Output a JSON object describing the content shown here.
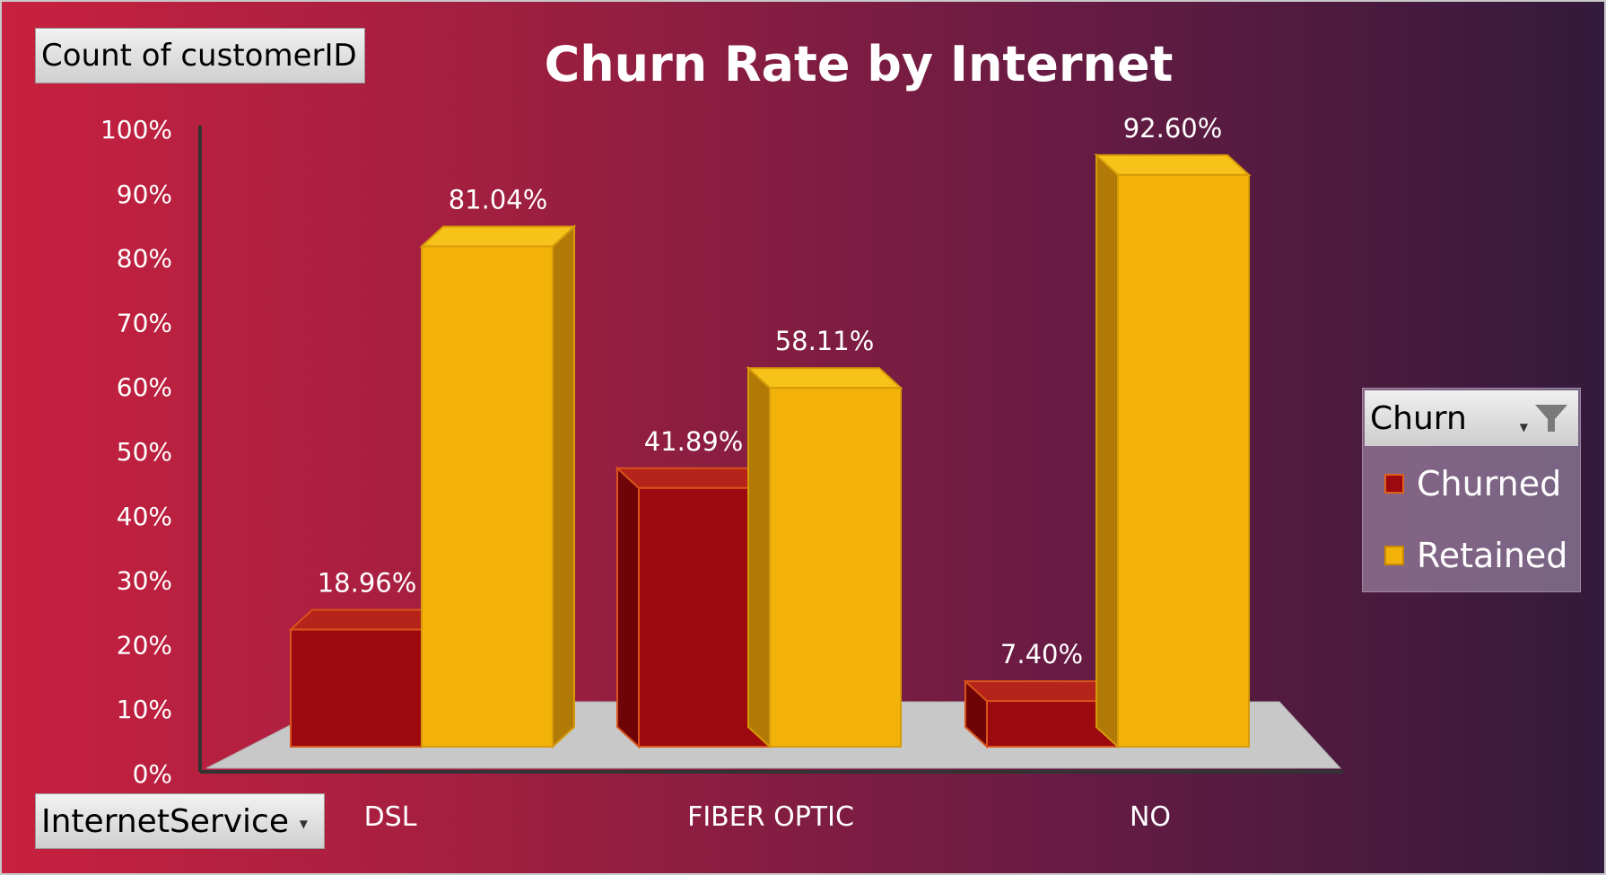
{
  "pivot": {
    "value_field": "Count of customerID",
    "axis_field": "InternetService",
    "legend_field": "Churn"
  },
  "colors": {
    "churned": "#9c0a10",
    "retained": "#f2b20a"
  },
  "chart_data": {
    "type": "bar",
    "title": "Churn Rate by Internet",
    "categories": [
      "DSL",
      "FIBER OPTIC",
      "NO"
    ],
    "series": [
      {
        "name": "Churned",
        "values": [
          18.96,
          41.89,
          7.4
        ],
        "labels": [
          "18.96%",
          "41.89%",
          "7.40%"
        ]
      },
      {
        "name": "Retained",
        "values": [
          81.04,
          58.11,
          92.6
        ],
        "labels": [
          "81.04%",
          "58.11%",
          "92.60%"
        ]
      }
    ],
    "ylim": [
      0,
      100
    ],
    "yticks": [
      "0%",
      "10%",
      "20%",
      "30%",
      "40%",
      "50%",
      "60%",
      "70%",
      "80%",
      "90%",
      "100%"
    ],
    "legend_position": "right",
    "grid": false
  }
}
